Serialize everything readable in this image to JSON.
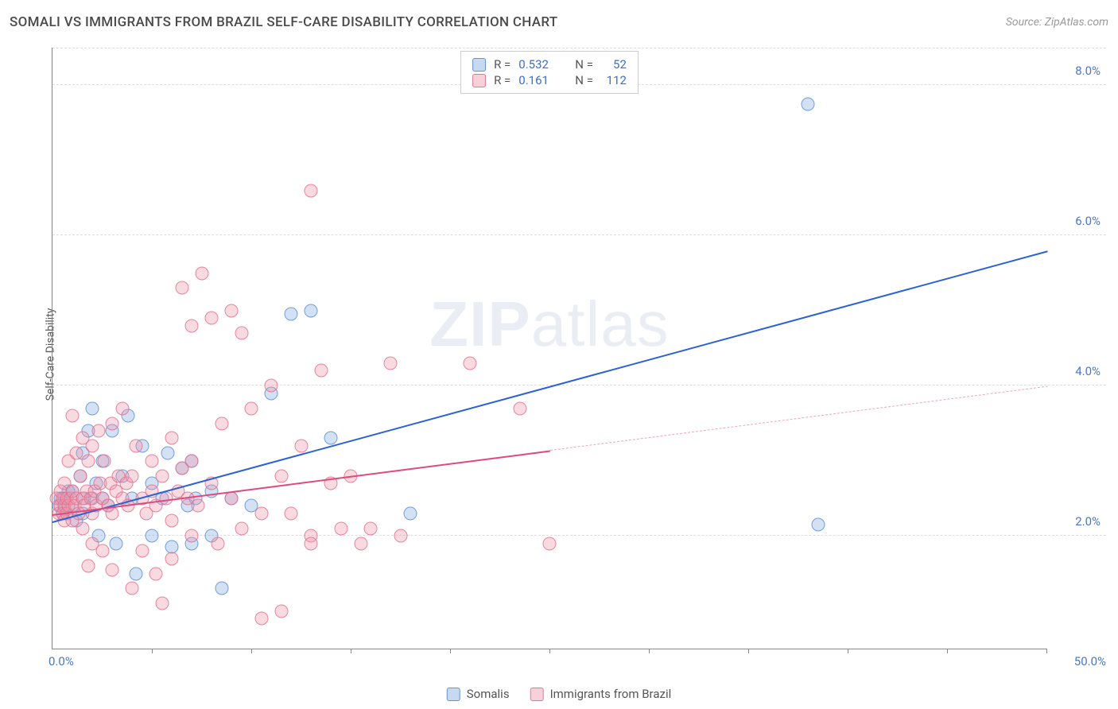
{
  "title": "SOMALI VS IMMIGRANTS FROM BRAZIL SELF-CARE DISABILITY CORRELATION CHART",
  "source": "Source: ZipAtlas.com",
  "y_axis_label": "Self-Care Disability",
  "watermark_bold": "ZIP",
  "watermark_rest": "atlas",
  "chart": {
    "type": "scatter",
    "xlim": [
      0,
      50
    ],
    "ylim": [
      0.5,
      8.5
    ],
    "x_origin_label": "0.0%",
    "x_end_label": "50.0%",
    "x_ticks": [
      0,
      5,
      10,
      15,
      20,
      25,
      30,
      35,
      40,
      45,
      50
    ],
    "y_ticks": [
      {
        "v": 2.0,
        "label": "2.0%"
      },
      {
        "v": 4.0,
        "label": "4.0%"
      },
      {
        "v": 6.0,
        "label": "6.0%"
      },
      {
        "v": 8.0,
        "label": "8.0%"
      }
    ],
    "grid_color": "#dddddd",
    "axis_color": "#888888",
    "background_color": "#ffffff",
    "tick_label_color": "#4a78c4",
    "marker_size": 17,
    "series": [
      {
        "id": "s1",
        "name": "Somalis",
        "color_fill": "rgba(128,170,225,0.35)",
        "color_stroke": "rgba(90,140,210,0.8)",
        "r_value": "0.532",
        "n_value": "52",
        "trend": {
          "x1": 0,
          "y1": 2.2,
          "x2": 50,
          "y2": 5.8,
          "color": "#2a62d4"
        },
        "points": [
          [
            0.3,
            2.4
          ],
          [
            0.4,
            2.5
          ],
          [
            0.5,
            2.3
          ],
          [
            0.6,
            2.5
          ],
          [
            0.6,
            2.35
          ],
          [
            0.8,
            2.6
          ],
          [
            1.0,
            2.4
          ],
          [
            1.0,
            2.6
          ],
          [
            1.2,
            2.2
          ],
          [
            1.4,
            2.8
          ],
          [
            1.5,
            2.3
          ],
          [
            1.5,
            3.1
          ],
          [
            1.6,
            2.5
          ],
          [
            1.8,
            3.4
          ],
          [
            2.0,
            2.5
          ],
          [
            2.0,
            3.7
          ],
          [
            2.2,
            2.7
          ],
          [
            2.3,
            2.0
          ],
          [
            2.5,
            2.5
          ],
          [
            2.5,
            3.0
          ],
          [
            2.8,
            2.4
          ],
          [
            3.0,
            3.4
          ],
          [
            3.2,
            1.9
          ],
          [
            3.5,
            2.8
          ],
          [
            3.8,
            3.6
          ],
          [
            4.0,
            2.5
          ],
          [
            4.2,
            1.5
          ],
          [
            4.5,
            3.2
          ],
          [
            5.0,
            2.0
          ],
          [
            5.0,
            2.7
          ],
          [
            5.5,
            2.5
          ],
          [
            5.8,
            3.1
          ],
          [
            6.0,
            1.85
          ],
          [
            6.5,
            2.9
          ],
          [
            6.8,
            2.4
          ],
          [
            7.0,
            3.0
          ],
          [
            7.0,
            1.9
          ],
          [
            7.2,
            2.5
          ],
          [
            8.0,
            2.6
          ],
          [
            8.0,
            2.0
          ],
          [
            8.5,
            1.3
          ],
          [
            9.0,
            2.5
          ],
          [
            10.0,
            2.4
          ],
          [
            11.0,
            3.9
          ],
          [
            12.0,
            4.95
          ],
          [
            13.0,
            5.0
          ],
          [
            14.0,
            3.3
          ],
          [
            18.0,
            2.3
          ],
          [
            38.0,
            7.75
          ],
          [
            38.5,
            2.15
          ]
        ]
      },
      {
        "id": "s2",
        "name": "Immigrants from Brazil",
        "color_fill": "rgba(240,150,170,0.35)",
        "color_stroke": "rgba(225,110,140,0.8)",
        "r_value": "0.161",
        "n_value": "112",
        "trend_solid": {
          "x1": 0,
          "y1": 2.3,
          "x2": 25,
          "y2": 3.15,
          "color": "#e04a7a"
        },
        "trend_dashed": {
          "x1": 25,
          "y1": 3.15,
          "x2": 50,
          "y2": 4.0,
          "color": "rgba(224,74,122,0.5)"
        },
        "points": [
          [
            0.2,
            2.5
          ],
          [
            0.3,
            2.3
          ],
          [
            0.4,
            2.4
          ],
          [
            0.4,
            2.6
          ],
          [
            0.5,
            2.3
          ],
          [
            0.5,
            2.5
          ],
          [
            0.6,
            2.4
          ],
          [
            0.6,
            2.2
          ],
          [
            0.6,
            2.7
          ],
          [
            0.7,
            2.5
          ],
          [
            0.7,
            2.3
          ],
          [
            0.8,
            2.4
          ],
          [
            0.8,
            3.0
          ],
          [
            0.9,
            2.5
          ],
          [
            1.0,
            2.2
          ],
          [
            1.0,
            2.6
          ],
          [
            1.0,
            3.6
          ],
          [
            1.1,
            2.4
          ],
          [
            1.2,
            2.5
          ],
          [
            1.2,
            3.1
          ],
          [
            1.3,
            2.3
          ],
          [
            1.4,
            2.8
          ],
          [
            1.5,
            2.5
          ],
          [
            1.5,
            2.1
          ],
          [
            1.5,
            3.3
          ],
          [
            1.6,
            2.4
          ],
          [
            1.7,
            2.6
          ],
          [
            1.8,
            3.0
          ],
          [
            1.8,
            1.6
          ],
          [
            1.9,
            2.5
          ],
          [
            2.0,
            2.3
          ],
          [
            2.0,
            3.2
          ],
          [
            2.0,
            1.9
          ],
          [
            2.1,
            2.6
          ],
          [
            2.2,
            2.4
          ],
          [
            2.3,
            3.4
          ],
          [
            2.4,
            2.7
          ],
          [
            2.5,
            2.5
          ],
          [
            2.5,
            1.8
          ],
          [
            2.6,
            3.0
          ],
          [
            2.8,
            2.4
          ],
          [
            2.9,
            2.7
          ],
          [
            3.0,
            2.3
          ],
          [
            3.0,
            3.5
          ],
          [
            3.0,
            1.55
          ],
          [
            3.2,
            2.6
          ],
          [
            3.3,
            2.8
          ],
          [
            3.5,
            2.5
          ],
          [
            3.5,
            3.7
          ],
          [
            3.7,
            2.7
          ],
          [
            3.8,
            2.4
          ],
          [
            4.0,
            2.8
          ],
          [
            4.0,
            1.3
          ],
          [
            4.2,
            3.2
          ],
          [
            4.5,
            2.5
          ],
          [
            4.5,
            1.8
          ],
          [
            4.7,
            2.3
          ],
          [
            5.0,
            2.6
          ],
          [
            5.0,
            3.0
          ],
          [
            5.2,
            2.4
          ],
          [
            5.2,
            1.5
          ],
          [
            5.5,
            2.8
          ],
          [
            5.5,
            1.1
          ],
          [
            5.7,
            2.5
          ],
          [
            6.0,
            3.3
          ],
          [
            6.0,
            2.2
          ],
          [
            6.0,
            1.7
          ],
          [
            6.3,
            2.6
          ],
          [
            6.5,
            2.9
          ],
          [
            6.5,
            5.3
          ],
          [
            6.8,
            2.5
          ],
          [
            7.0,
            2.0
          ],
          [
            7.0,
            3.0
          ],
          [
            7.0,
            4.8
          ],
          [
            7.3,
            2.4
          ],
          [
            7.5,
            5.5
          ],
          [
            8.0,
            4.9
          ],
          [
            8.0,
            2.7
          ],
          [
            8.3,
            1.9
          ],
          [
            8.5,
            3.5
          ],
          [
            9.0,
            2.5
          ],
          [
            9.0,
            5.0
          ],
          [
            9.5,
            4.7
          ],
          [
            9.5,
            2.1
          ],
          [
            10.0,
            3.7
          ],
          [
            10.5,
            2.3
          ],
          [
            10.5,
            0.9
          ],
          [
            11.0,
            4.0
          ],
          [
            11.5,
            2.8
          ],
          [
            11.5,
            1.0
          ],
          [
            12.0,
            2.3
          ],
          [
            12.5,
            3.2
          ],
          [
            13.0,
            6.6
          ],
          [
            13.0,
            2.0
          ],
          [
            13.0,
            1.9
          ],
          [
            13.5,
            4.2
          ],
          [
            14.0,
            2.7
          ],
          [
            14.5,
            2.1
          ],
          [
            15.0,
            2.8
          ],
          [
            15.5,
            1.9
          ],
          [
            16.0,
            2.1
          ],
          [
            17.0,
            4.3
          ],
          [
            17.5,
            2.0
          ],
          [
            21.0,
            4.3
          ],
          [
            23.5,
            3.7
          ],
          [
            25.0,
            1.9
          ]
        ]
      }
    ]
  },
  "legend_bottom": [
    {
      "swatch": "s1",
      "label": "Somalis"
    },
    {
      "swatch": "s2",
      "label": "Immigrants from Brazil"
    }
  ]
}
